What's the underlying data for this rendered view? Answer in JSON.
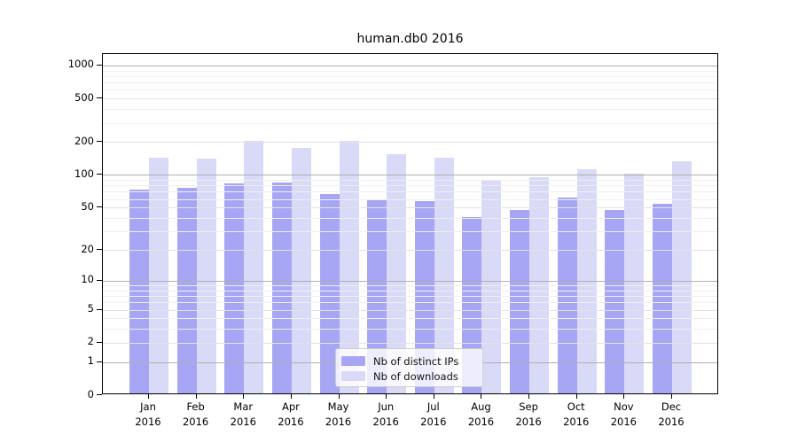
{
  "title": "human.db0 2016",
  "background_color": "#ffffff",
  "chart_data": {
    "type": "bar",
    "title": "human.db0 2016",
    "xlabel": "",
    "ylabel": "",
    "categories": [
      "Jan",
      "Feb",
      "Mar",
      "Apr",
      "May",
      "Jun",
      "Jul",
      "Aug",
      "Sep",
      "Oct",
      "Nov",
      "Dec"
    ],
    "x_tick_line2": "2016",
    "series": [
      {
        "name": "Nb of distinct IPs",
        "color": "#a6a6f4",
        "values": [
          72,
          75,
          82,
          84,
          66,
          59,
          56,
          40,
          47,
          61,
          47,
          53
        ]
      },
      {
        "name": "Nb of downloads",
        "color": "#d9d9f8",
        "values": [
          141,
          139,
          200,
          175,
          200,
          152,
          141,
          88,
          93,
          110,
          101,
          130
        ]
      }
    ],
    "yscale": "log1p",
    "y_ticks": [
      0,
      1,
      2,
      5,
      10,
      20,
      50,
      100,
      200,
      500,
      1000
    ],
    "y_major_ticks": [
      1,
      10,
      100,
      1000
    ],
    "ylim": [
      0,
      1272
    ],
    "grid": "on",
    "grid_major_color": "#b0b0b0",
    "grid_minor_color": "#efefef",
    "grid_labeled_minor_color": "#e3e3e3",
    "legend_position": "lower-center",
    "legend_entries": [
      "Nb of distinct IPs",
      "Nb of downloads"
    ]
  }
}
